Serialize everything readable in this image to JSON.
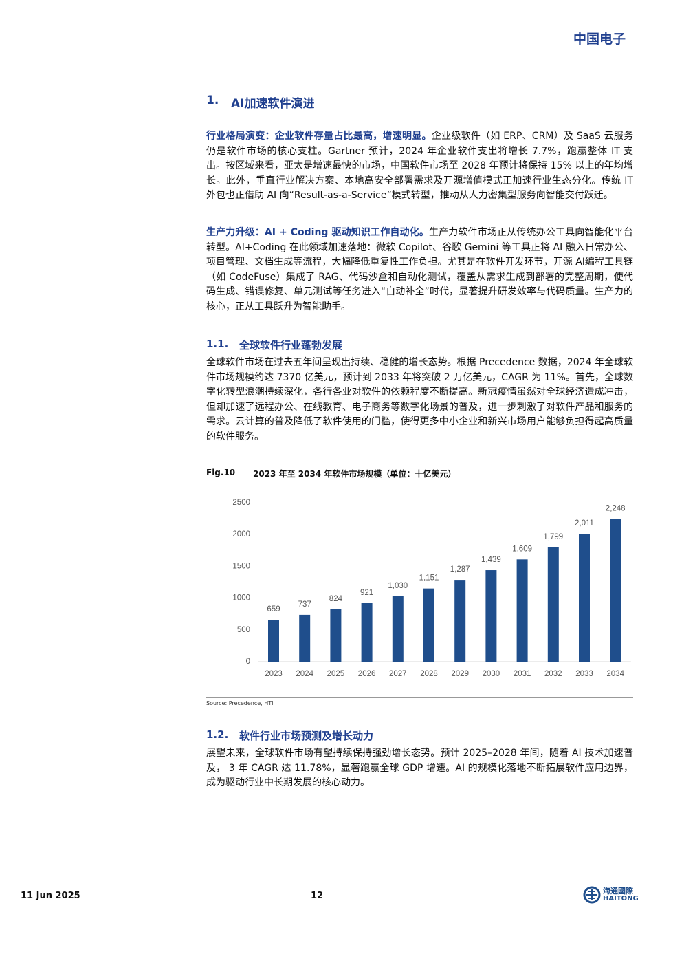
{
  "header": {
    "brand": "中国电子"
  },
  "section": {
    "number": "1.",
    "title": "AI加速软件演进"
  },
  "paragraphs": [
    {
      "lead": "行业格局演变：企业软件存量占比最高，增速明显。",
      "body": "企业级软件（如 ERP、CRM）及 SaaS 云服务仍是软件市场的核心支柱。Gartner 预计，2024 年企业软件支出将增长 7.7%，跑赢整体 IT 支出。按区域来看，亚太是增速最快的市场，中国软件市场至 2028 年预计将保持 15% 以上的年均增长。此外，垂直行业解决方案、本地高安全部署需求及开源增值模式正加速行业生态分化。传统 IT 外包也正借助 AI 向“Result-as-a-Service”模式转型，推动从人力密集型服务向智能交付跃迁。"
    },
    {
      "lead": "生产力升级：AI + Coding 驱动知识工作自动化。",
      "body": "生产力软件市场正从传统办公工具向智能化平台转型。AI+Coding 在此领域加速落地：微软 Copilot、谷歌 Gemini 等工具正将 AI 融入日常办公、项目管理、文档生成等流程，大幅降低重复性工作负担。尤其是在软件开发环节，开源 AI编程工具链（如 CodeFuse）集成了 RAG、代码沙盒和自动化测试，覆盖从需求生成到部署的完整周期，使代码生成、错误修复、单元测试等任务进入“自动补全”时代，显著提升研发效率与代码质量。生产力的核心，正从工具跃升为智能助手。"
    }
  ],
  "subsections": [
    {
      "number": "1.1.",
      "title": "全球软件行业蓬勃发展",
      "body": "全球软件市场在过去五年间呈现出持续、稳健的增长态势。根据 Precedence 数据，2024 年全球软件市场规模约达 7370 亿美元，预计到 2033 年将突破 2 万亿美元，CAGR 为 11%。首先，全球数字化转型浪潮持续深化，各行各业对软件的依赖程度不断提高。新冠疫情虽然对全球经济造成冲击，但却加速了远程办公、在线教育、电子商务等数字化场景的普及，进一步刺激了对软件产品和服务的需求。云计算的普及降低了软件使用的门槛，使得更多中小企业和新兴市场用户能够负担得起高质量的软件服务。"
    },
    {
      "number": "1.2.",
      "title": "软件行业市场预测及增长动力",
      "body": "展望未来，全球软件市场有望持续保持强劲增长态势。预计 2025–2028 年间，随着 AI 技术加速普及， 3 年 CAGR 达 11.78%，显著跑赢全球 GDP 增速。AI 的规模化落地不断拓展软件应用边界，成为驱动行业中长期发展的核心动力。"
    }
  ],
  "figure": {
    "label": "Fig.10",
    "title": "2023 年至 2034 年软件市场规模（单位：十亿美元）",
    "source": "Source: Precedence, HTI"
  },
  "chart_data": {
    "type": "bar",
    "categories": [
      "2023",
      "2024",
      "2025",
      "2026",
      "2027",
      "2028",
      "2029",
      "2030",
      "2031",
      "2032",
      "2033",
      "2034"
    ],
    "values": [
      659,
      737,
      824,
      921,
      1030,
      1151,
      1287,
      1439,
      1609,
      1799,
      2011,
      2248
    ],
    "value_labels": [
      "659",
      "737",
      "824",
      "921",
      "1,030",
      "1,151",
      "1,287",
      "1,439",
      "1,609",
      "1,799",
      "2,011",
      "2,248"
    ],
    "color": "#1f4e8c",
    "ylim": [
      0,
      2500
    ],
    "yticks": [
      0,
      500,
      1000,
      1500,
      2000,
      2500
    ],
    "grid": false
  },
  "footer": {
    "date": "11 Jun 2025",
    "page": "12",
    "logo_cn": "海通國際",
    "logo_en": "HAITONG"
  }
}
